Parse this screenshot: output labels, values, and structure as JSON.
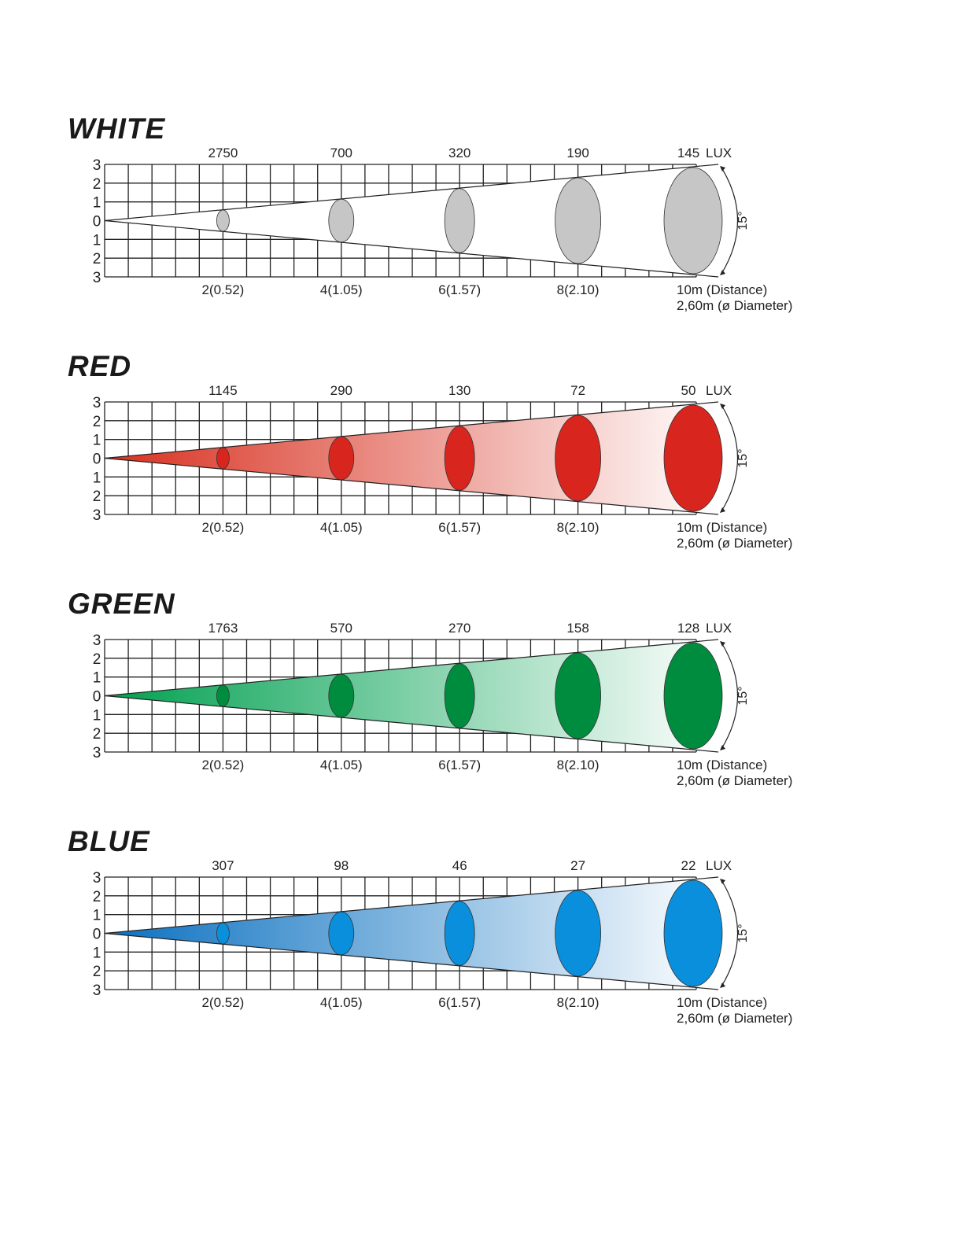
{
  "chart_data": [
    {
      "type": "beam-diagram",
      "title": "WHITE",
      "distances_m": [
        2,
        4,
        6,
        8,
        10
      ],
      "diameters_m": [
        0.52,
        1.05,
        1.57,
        2.1,
        2.6
      ],
      "lux": [
        2750,
        700,
        320,
        190,
        145
      ],
      "lux_unit": "LUX",
      "distance_labels": [
        "2(0.52)",
        "4(1.05)",
        "6(1.57)",
        "8(2.10)",
        "10m (Distance)"
      ],
      "diameter_label": "2,60m (ø Diameter)",
      "y_ticks": [
        "3",
        "2",
        "1",
        "0",
        "1",
        "2",
        "3"
      ],
      "beam_angle": "15°",
      "spot_color": "#c6c6c6",
      "cone_color": "#ffffff"
    },
    {
      "type": "beam-diagram",
      "title": "RED",
      "distances_m": [
        2,
        4,
        6,
        8,
        10
      ],
      "diameters_m": [
        0.52,
        1.05,
        1.57,
        2.1,
        2.6
      ],
      "lux": [
        1145,
        290,
        130,
        72,
        50
      ],
      "lux_unit": "LUX",
      "distance_labels": [
        "2(0.52)",
        "4(1.05)",
        "6(1.57)",
        "8(2.10)",
        "10m (Distance)"
      ],
      "diameter_label": "2,60m (ø Diameter)",
      "y_ticks": [
        "3",
        "2",
        "1",
        "0",
        "1",
        "2",
        "3"
      ],
      "beam_angle": "15°",
      "spot_color": "#d8261f",
      "cone_color": "#d8301f"
    },
    {
      "type": "beam-diagram",
      "title": "GREEN",
      "distances_m": [
        2,
        4,
        6,
        8,
        10
      ],
      "diameters_m": [
        0.52,
        1.05,
        1.57,
        2.1,
        2.6
      ],
      "lux": [
        1763,
        570,
        270,
        158,
        128
      ],
      "lux_unit": "LUX",
      "distance_labels": [
        "2(0.52)",
        "4(1.05)",
        "6(1.57)",
        "8(2.10)",
        "10m (Distance)"
      ],
      "diameter_label": "2,60m (ø Diameter)",
      "y_ticks": [
        "3",
        "2",
        "1",
        "0",
        "1",
        "2",
        "3"
      ],
      "beam_angle": "15°",
      "spot_color": "#008c3e",
      "cone_color": "#00a050"
    },
    {
      "type": "beam-diagram",
      "title": "BLUE",
      "distances_m": [
        2,
        4,
        6,
        8,
        10
      ],
      "diameters_m": [
        0.52,
        1.05,
        1.57,
        2.1,
        2.6
      ],
      "lux": [
        307,
        98,
        46,
        27,
        22
      ],
      "lux_unit": "LUX",
      "distance_labels": [
        "2(0.52)",
        "4(1.05)",
        "6(1.57)",
        "8(2.10)",
        "10m (Distance)"
      ],
      "diameter_label": "2,60m (ø Diameter)",
      "y_ticks": [
        "3",
        "2",
        "1",
        "0",
        "1",
        "2",
        "3"
      ],
      "beam_angle": "15°",
      "spot_color": "#0a8fdc",
      "cone_color": "#0a70c0"
    }
  ]
}
